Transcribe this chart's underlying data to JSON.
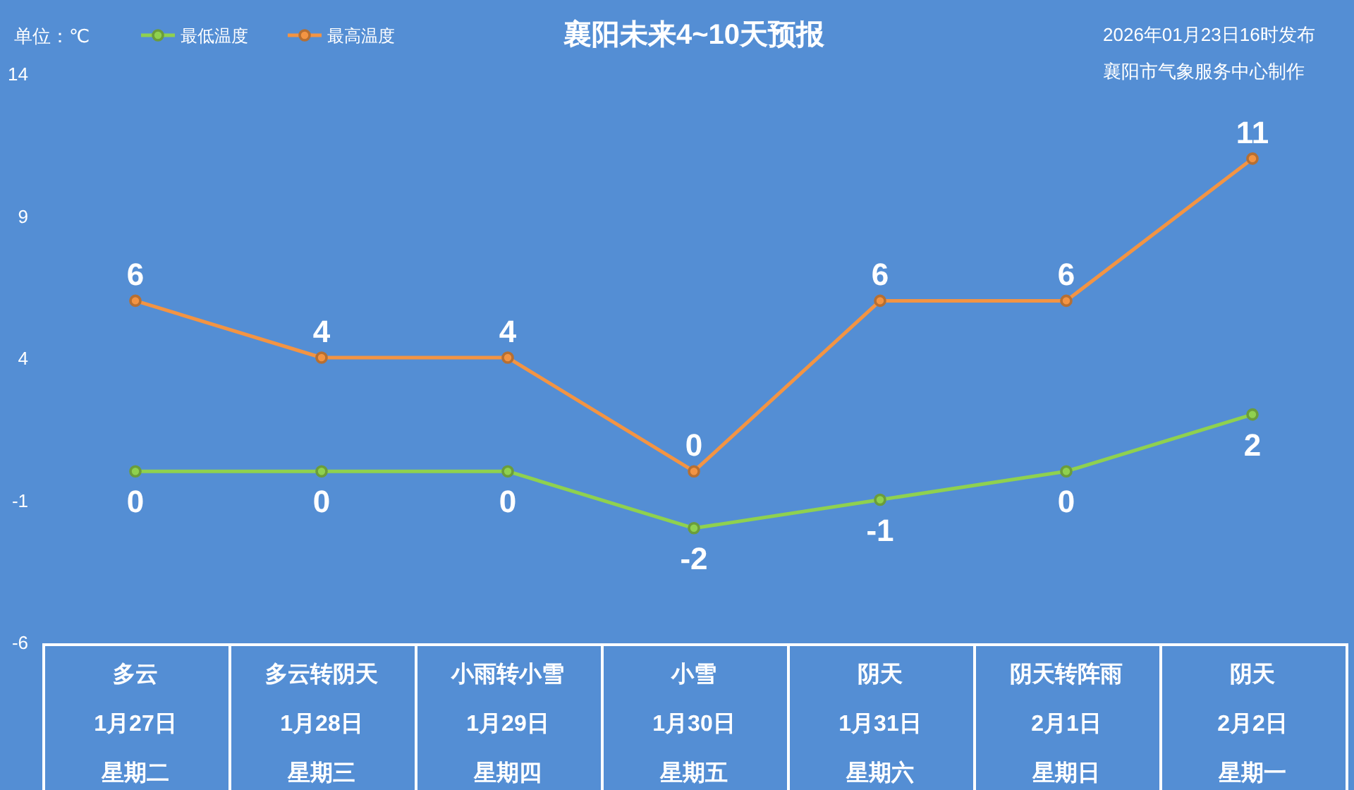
{
  "chart_data": {
    "type": "line",
    "title": "襄阳未来4~10天预报",
    "ylabel": "单位：℃",
    "annotations": [
      "2026年01月23日16时发布",
      "襄阳市气象服务中心制作",
      "多云",
      "多云转阴天",
      "小雨转小雪",
      "小雪",
      "阴天",
      "阴天转阵雨",
      "阴天",
      "星期二",
      "星期三",
      "星期四",
      "星期五",
      "星期六",
      "星期日",
      "星期一"
    ],
    "categories": [
      "1月27日",
      "1月28日",
      "1月29日",
      "1月30日",
      "1月31日",
      "2月1日",
      "2月2日"
    ],
    "series": [
      {
        "name": "最低温度",
        "color": "#8fd14f",
        "values": [
          0,
          0,
          0,
          -2,
          -1,
          0,
          2
        ]
      },
      {
        "name": "最高温度",
        "color": "#f39443",
        "values": [
          6,
          4,
          4,
          0,
          6,
          6,
          11
        ]
      }
    ],
    "ylim": [
      -6,
      14
    ],
    "yticks": [
      -6,
      -1,
      4,
      9,
      14
    ],
    "data_labels": true,
    "legend": "top left",
    "marker": "circle"
  }
}
